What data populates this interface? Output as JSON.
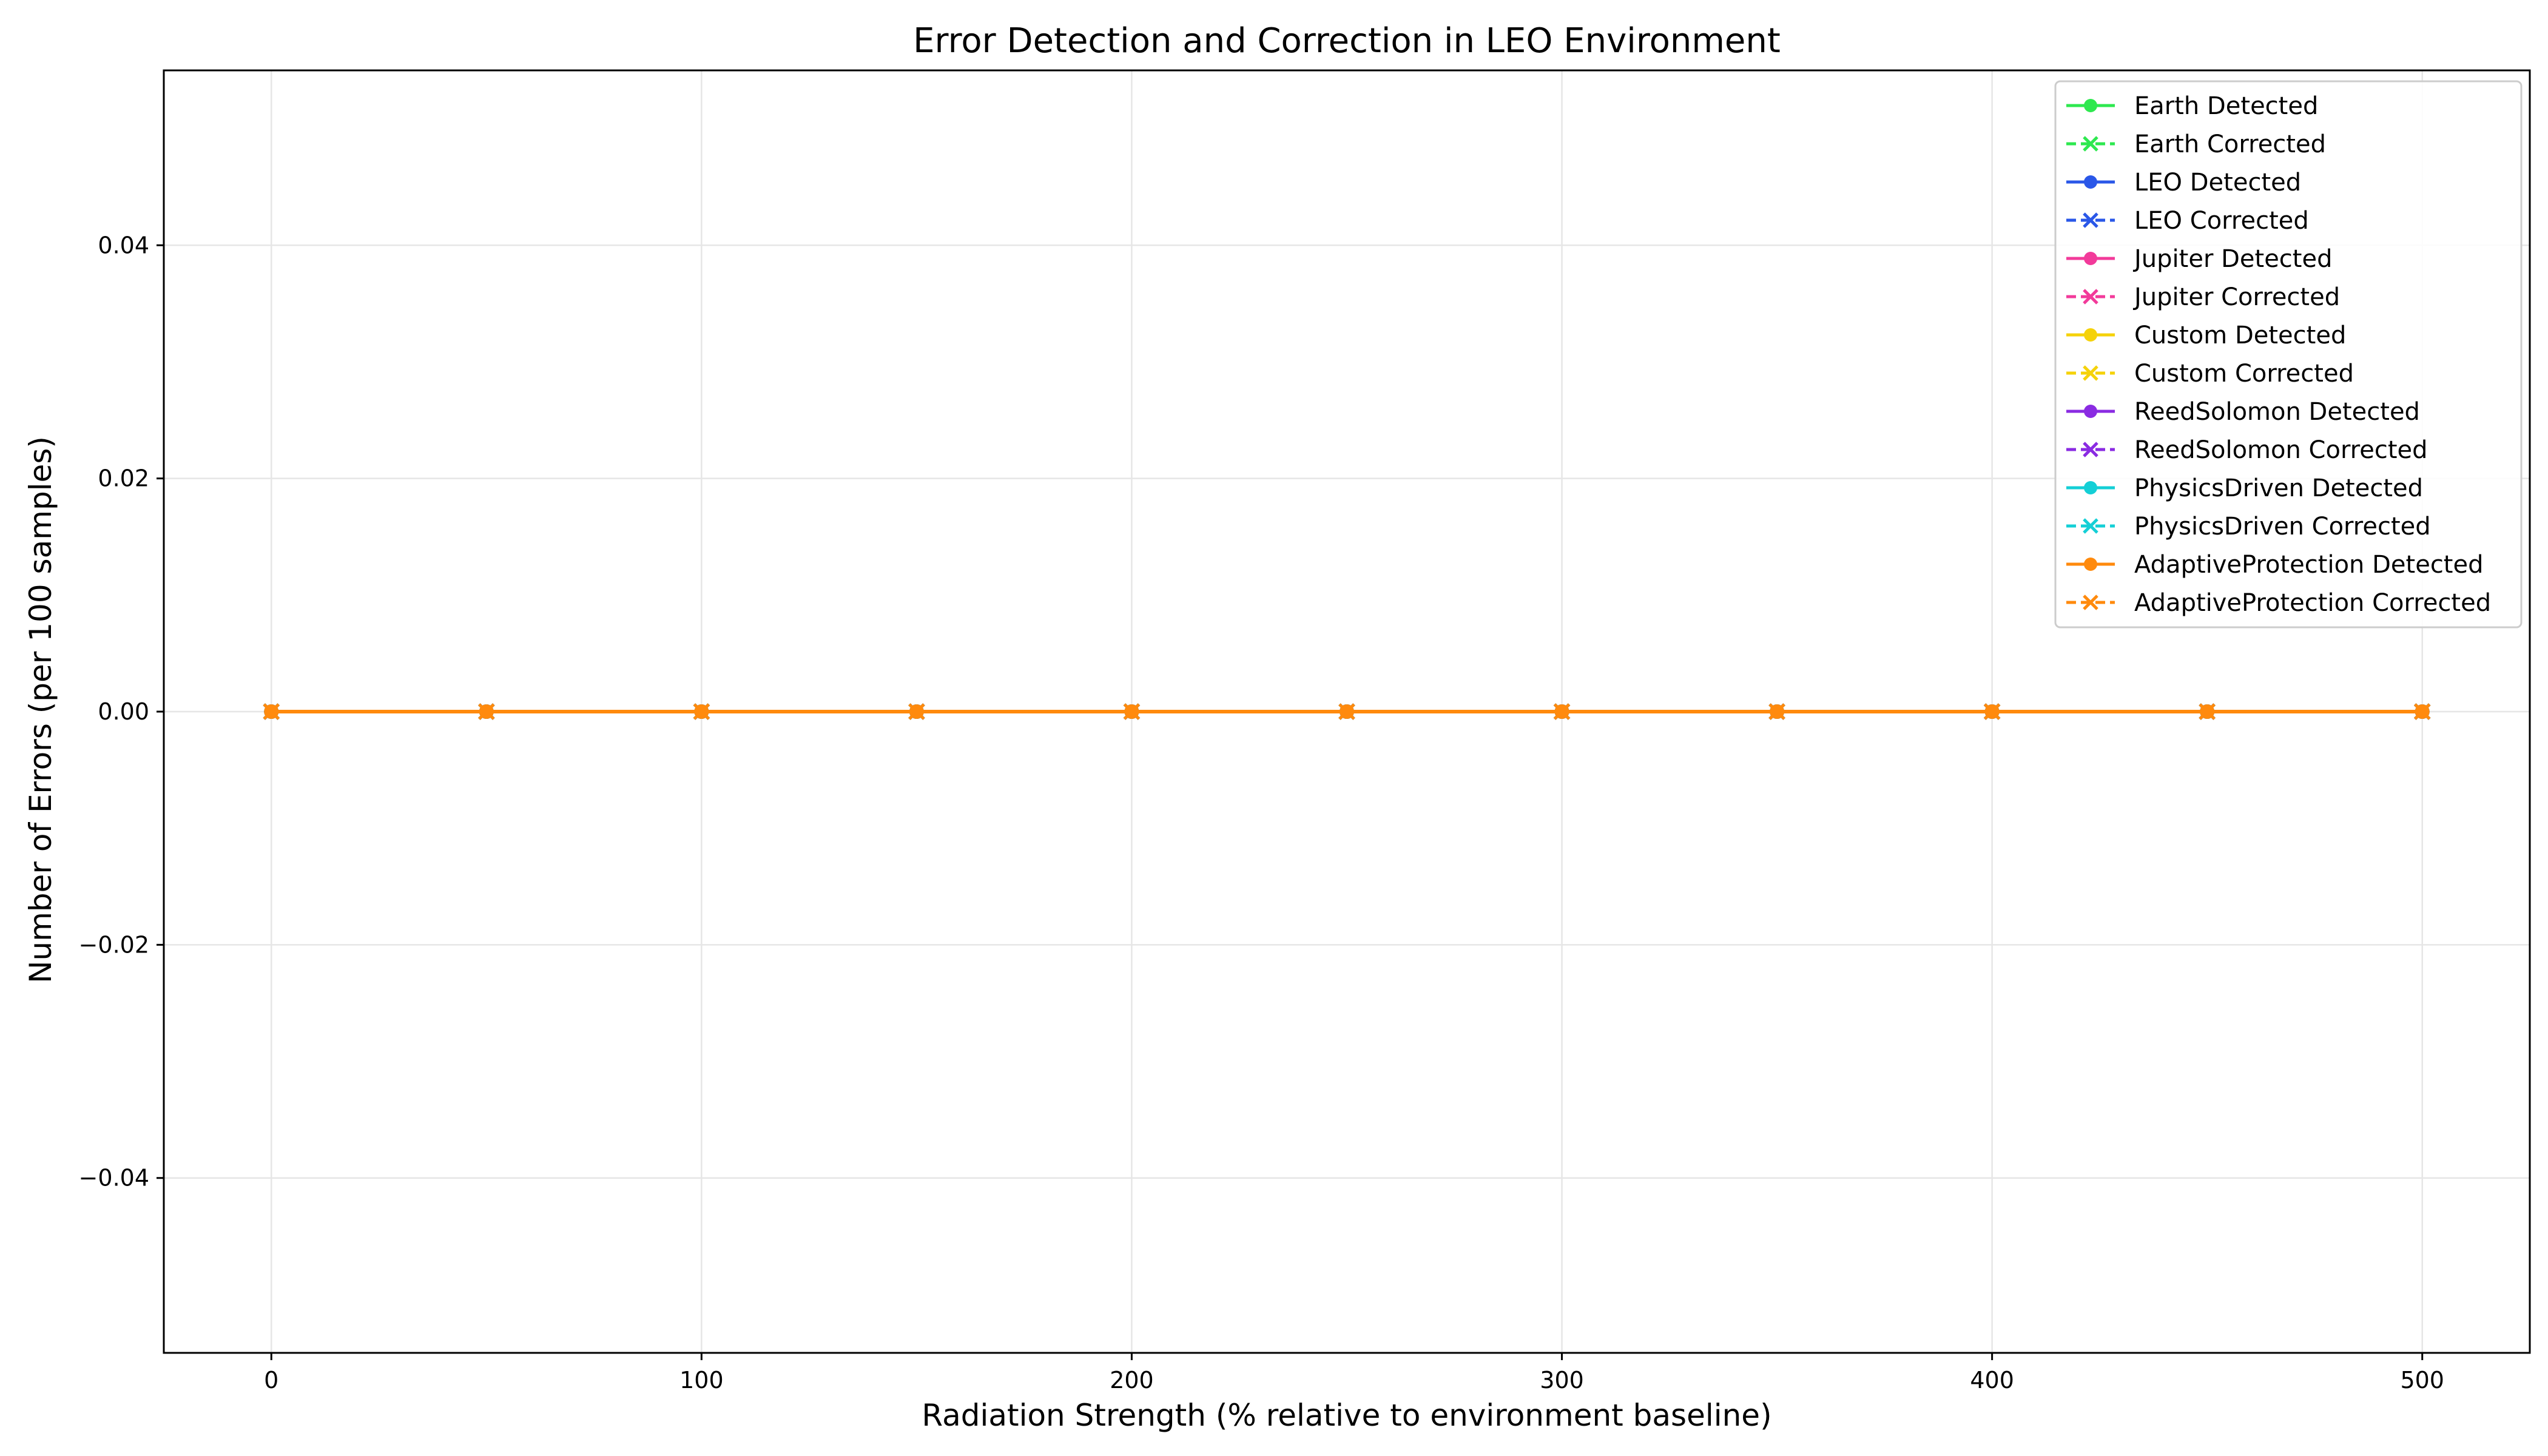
{
  "chart_data": {
    "type": "line",
    "title": "Error Detection and Correction in LEO Environment",
    "xlabel": "Radiation Strength (% relative to environment baseline)",
    "ylabel": "Number of Errors (per 100 samples)",
    "xlim": [
      -25,
      525
    ],
    "ylim": [
      -0.055,
      0.055
    ],
    "x_ticks": [
      0,
      100,
      200,
      300,
      400,
      500
    ],
    "x_tick_labels": [
      "0",
      "100",
      "200",
      "300",
      "400",
      "500"
    ],
    "y_ticks": [
      -0.04,
      -0.02,
      0.0,
      0.02,
      0.04
    ],
    "y_tick_labels": [
      "−0.04",
      "−0.02",
      "0.00",
      "0.02",
      "0.04"
    ],
    "grid": true,
    "legend_position": "top-right",
    "x": [
      0,
      50,
      100,
      150,
      200,
      250,
      300,
      350,
      400,
      450,
      500
    ],
    "series": [
      {
        "name": "Earth Detected",
        "color": "#2ee84f",
        "style": "solid",
        "marker": "circle",
        "values": [
          0,
          0,
          0,
          0,
          0,
          0,
          0,
          0,
          0,
          0,
          0
        ]
      },
      {
        "name": "Earth Corrected",
        "color": "#2ee84f",
        "style": "dashed",
        "marker": "x",
        "values": [
          0,
          0,
          0,
          0,
          0,
          0,
          0,
          0,
          0,
          0,
          0
        ]
      },
      {
        "name": "LEO Detected",
        "color": "#2a57e8",
        "style": "solid",
        "marker": "circle",
        "values": [
          0,
          0,
          0,
          0,
          0,
          0,
          0,
          0,
          0,
          0,
          0
        ]
      },
      {
        "name": "LEO Corrected",
        "color": "#2a57e8",
        "style": "dashed",
        "marker": "x",
        "values": [
          0,
          0,
          0,
          0,
          0,
          0,
          0,
          0,
          0,
          0,
          0
        ]
      },
      {
        "name": "Jupiter Detected",
        "color": "#f23a9a",
        "style": "solid",
        "marker": "circle",
        "values": [
          0,
          0,
          0,
          0,
          0,
          0,
          0,
          0,
          0,
          0,
          0
        ]
      },
      {
        "name": "Jupiter Corrected",
        "color": "#f23a9a",
        "style": "dashed",
        "marker": "x",
        "values": [
          0,
          0,
          0,
          0,
          0,
          0,
          0,
          0,
          0,
          0,
          0
        ]
      },
      {
        "name": "Custom Detected",
        "color": "#f5d20a",
        "style": "solid",
        "marker": "circle",
        "values": [
          0,
          0,
          0,
          0,
          0,
          0,
          0,
          0,
          0,
          0,
          0
        ]
      },
      {
        "name": "Custom Corrected",
        "color": "#f5d20a",
        "style": "dashed",
        "marker": "x",
        "values": [
          0,
          0,
          0,
          0,
          0,
          0,
          0,
          0,
          0,
          0,
          0
        ]
      },
      {
        "name": "ReedSolomon Detected",
        "color": "#8a2be2",
        "style": "solid",
        "marker": "circle",
        "values": [
          0,
          0,
          0,
          0,
          0,
          0,
          0,
          0,
          0,
          0,
          0
        ]
      },
      {
        "name": "ReedSolomon Corrected",
        "color": "#8a2be2",
        "style": "dashed",
        "marker": "x",
        "values": [
          0,
          0,
          0,
          0,
          0,
          0,
          0,
          0,
          0,
          0,
          0
        ]
      },
      {
        "name": "PhysicsDriven Detected",
        "color": "#14cfd6",
        "style": "solid",
        "marker": "circle",
        "values": [
          0,
          0,
          0,
          0,
          0,
          0,
          0,
          0,
          0,
          0,
          0
        ]
      },
      {
        "name": "PhysicsDriven Corrected",
        "color": "#14cfd6",
        "style": "dashed",
        "marker": "x",
        "values": [
          0,
          0,
          0,
          0,
          0,
          0,
          0,
          0,
          0,
          0,
          0
        ]
      },
      {
        "name": "AdaptiveProtection Detected",
        "color": "#ff8a0d",
        "style": "solid",
        "marker": "circle",
        "values": [
          0,
          0,
          0,
          0,
          0,
          0,
          0,
          0,
          0,
          0,
          0
        ]
      },
      {
        "name": "AdaptiveProtection Corrected",
        "color": "#ff8a0d",
        "style": "dashed",
        "marker": "x",
        "values": [
          0,
          0,
          0,
          0,
          0,
          0,
          0,
          0,
          0,
          0,
          0
        ]
      }
    ]
  }
}
